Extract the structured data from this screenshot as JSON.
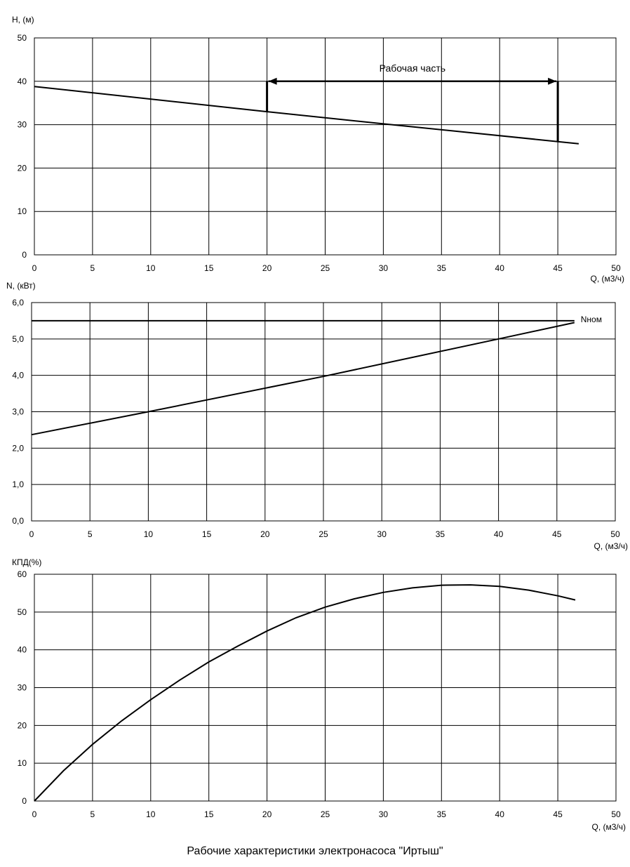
{
  "caption": "Рабочие характеристики электронасоса \"Иртыш\"",
  "chart_data": [
    {
      "type": "line",
      "ylabel": "H, (м)",
      "xlabel": "Q, (м3/ч)",
      "xlim": [
        0,
        50
      ],
      "ylim": [
        0,
        50
      ],
      "xticks": [
        "0",
        "5",
        "10",
        "15",
        "20",
        "25",
        "30",
        "35",
        "40",
        "45",
        "50"
      ],
      "yticks": [
        "0",
        "10",
        "20",
        "30",
        "40",
        "50"
      ],
      "grid": true,
      "series": [
        {
          "x": [
            0,
            20,
            30,
            45,
            46.8
          ],
          "y": [
            38.8,
            33.0,
            30.2,
            26.1,
            25.6
          ]
        }
      ],
      "annotation": {
        "label": "Рабочая часть",
        "x_from": 20,
        "x_to": 45,
        "y": 40
      }
    },
    {
      "type": "line",
      "ylabel": "N, (кВт)",
      "xlabel": "Q, (м3/ч)",
      "xlim": [
        0,
        50
      ],
      "ylim": [
        0,
        6
      ],
      "xticks": [
        "0",
        "5",
        "10",
        "15",
        "20",
        "25",
        "30",
        "35",
        "40",
        "45",
        "50"
      ],
      "yticks": [
        "0,0",
        "1,0",
        "2,0",
        "3,0",
        "4,0",
        "5,0",
        "6,0"
      ],
      "grid": true,
      "series": [
        {
          "x": [
            0,
            10,
            25,
            40,
            46.5
          ],
          "y": [
            2.37,
            3.0,
            3.97,
            5.0,
            5.45
          ]
        },
        {
          "name": "Nном",
          "x": [
            0,
            46.5
          ],
          "y": [
            5.5,
            5.5
          ]
        }
      ]
    },
    {
      "type": "line",
      "ylabel": "КПД(%)",
      "xlabel": "Q, (м3/ч)",
      "xlim": [
        0,
        50
      ],
      "ylim": [
        0,
        60
      ],
      "xticks": [
        "0",
        "5",
        "10",
        "15",
        "20",
        "25",
        "30",
        "35",
        "40",
        "45",
        "50"
      ],
      "yticks": [
        "0",
        "10",
        "20",
        "30",
        "40",
        "50",
        "60"
      ],
      "grid": true,
      "series": [
        {
          "x": [
            0,
            2.5,
            5,
            7.5,
            10,
            12.5,
            15,
            17.5,
            20,
            22.5,
            25,
            27.5,
            30,
            32.5,
            35,
            37.5,
            40,
            42.5,
            45,
            46.5
          ],
          "y": [
            0,
            8,
            15,
            21.2,
            26.8,
            32,
            36.8,
            41,
            45,
            48.5,
            51.3,
            53.5,
            55.2,
            56.4,
            57.1,
            57.2,
            56.8,
            55.8,
            54.3,
            53.2
          ]
        }
      ]
    }
  ]
}
